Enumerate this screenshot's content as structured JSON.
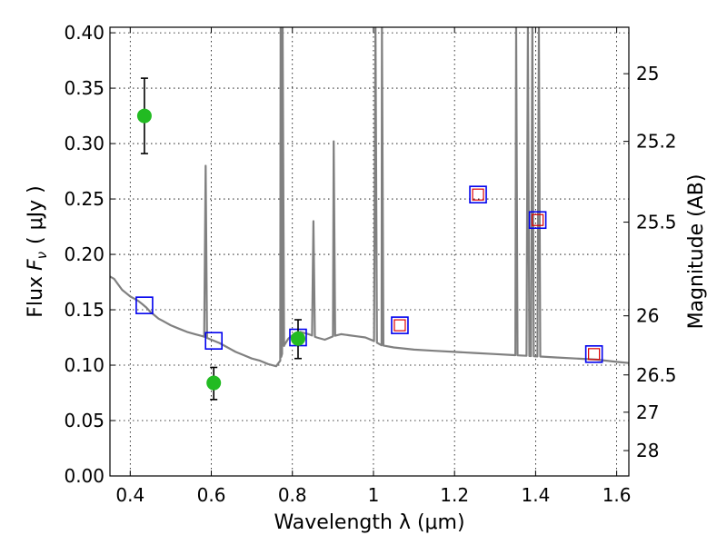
{
  "chart_data": {
    "type": "scatter",
    "xlabel": "Wavelength  λ (μm)",
    "ylabel": "Flux  F",
    "ylabel_sub": "ν",
    "ylabel_units": "( μJy )",
    "y2label": "Magnitude (AB)",
    "xlim": [
      0.35,
      1.63
    ],
    "ylim": [
      0,
      0.405
    ],
    "grid": true,
    "x_ticks": [
      0.4,
      0.6,
      0.8,
      1.0,
      1.2,
      1.4,
      1.6
    ],
    "x_tick_labels": [
      "0.4",
      "0.6",
      "0.8",
      "1",
      "1.2",
      "1.4",
      "1.6"
    ],
    "y_ticks": [
      0.0,
      0.05,
      0.1,
      0.15,
      0.2,
      0.25,
      0.3,
      0.35,
      0.4
    ],
    "y_tick_labels": [
      "0.00",
      "0.05",
      "0.10",
      "0.15",
      "0.20",
      "0.25",
      "0.30",
      "0.35",
      "0.40"
    ],
    "mag_ticks": [
      {
        "mag": 25,
        "label": "25"
      },
      {
        "mag": 25.2,
        "label": "25.2"
      },
      {
        "mag": 25.5,
        "label": "25.5"
      },
      {
        "mag": 26,
        "label": "26"
      },
      {
        "mag": 26.5,
        "label": "26.5"
      },
      {
        "mag": 27,
        "label": "27"
      },
      {
        "mag": 28,
        "label": "28"
      }
    ],
    "colors": {
      "spectrum": "#808080",
      "observed": "#22bb22",
      "errorbar": "#000000",
      "model_box": "#0000ee",
      "model_inner": "#dd0000"
    },
    "spectrum_continuum": [
      [
        0.35,
        0.18
      ],
      [
        0.36,
        0.178
      ],
      [
        0.37,
        0.173
      ],
      [
        0.38,
        0.168
      ],
      [
        0.39,
        0.165
      ],
      [
        0.4,
        0.162
      ],
      [
        0.41,
        0.16
      ],
      [
        0.42,
        0.158
      ],
      [
        0.43,
        0.155
      ],
      [
        0.44,
        0.152
      ],
      [
        0.45,
        0.148
      ],
      [
        0.46,
        0.145
      ],
      [
        0.47,
        0.142
      ],
      [
        0.48,
        0.14
      ],
      [
        0.49,
        0.138
      ],
      [
        0.5,
        0.136
      ],
      [
        0.52,
        0.133
      ],
      [
        0.54,
        0.13
      ],
      [
        0.56,
        0.128
      ],
      [
        0.58,
        0.126
      ],
      [
        0.6,
        0.123
      ],
      [
        0.62,
        0.12
      ],
      [
        0.64,
        0.116
      ],
      [
        0.66,
        0.112
      ],
      [
        0.68,
        0.109
      ],
      [
        0.7,
        0.106
      ],
      [
        0.72,
        0.104
      ],
      [
        0.74,
        0.101
      ],
      [
        0.76,
        0.099
      ],
      [
        0.77,
        0.104
      ],
      [
        0.78,
        0.118
      ],
      [
        0.79,
        0.124
      ],
      [
        0.8,
        0.127
      ],
      [
        0.82,
        0.13
      ],
      [
        0.84,
        0.128
      ],
      [
        0.86,
        0.125
      ],
      [
        0.88,
        0.123
      ],
      [
        0.9,
        0.126
      ],
      [
        0.92,
        0.128
      ],
      [
        0.94,
        0.127
      ],
      [
        0.96,
        0.126
      ],
      [
        0.98,
        0.125
      ],
      [
        1.0,
        0.122
      ],
      [
        1.02,
        0.118
      ],
      [
        1.05,
        0.116
      ],
      [
        1.1,
        0.114
      ],
      [
        1.15,
        0.113
      ],
      [
        1.2,
        0.112
      ],
      [
        1.25,
        0.111
      ],
      [
        1.3,
        0.11
      ],
      [
        1.35,
        0.109
      ],
      [
        1.4,
        0.108
      ],
      [
        1.45,
        0.107
      ],
      [
        1.5,
        0.106
      ],
      [
        1.55,
        0.105
      ],
      [
        1.6,
        0.103
      ],
      [
        1.63,
        0.102
      ]
    ],
    "emission_lines": [
      {
        "x": 0.586,
        "peak": 0.28
      },
      {
        "x": 0.771,
        "peak": 0.405
      },
      {
        "x": 0.776,
        "peak": 0.405
      },
      {
        "x": 0.852,
        "peak": 0.23
      },
      {
        "x": 0.902,
        "peak": 0.302
      },
      {
        "x": 1.005,
        "peak": 0.405
      },
      {
        "x": 1.021,
        "peak": 0.405
      },
      {
        "x": 1.352,
        "peak": 0.405
      },
      {
        "x": 1.381,
        "peak": 0.405
      },
      {
        "x": 1.392,
        "peak": 0.405
      },
      {
        "x": 1.408,
        "peak": 0.405
      }
    ],
    "observed_points": [
      {
        "x": 0.435,
        "y": 0.325,
        "yerr_low": 0.291,
        "yerr_high": 0.359
      },
      {
        "x": 0.606,
        "y": 0.084,
        "yerr_low": 0.069,
        "yerr_high": 0.098
      },
      {
        "x": 0.814,
        "y": 0.124,
        "yerr_low": 0.106,
        "yerr_high": 0.141
      }
    ],
    "model_points": [
      {
        "x": 0.435,
        "y": 0.154,
        "inner": false
      },
      {
        "x": 0.606,
        "y": 0.122,
        "inner": false
      },
      {
        "x": 0.814,
        "y": 0.125,
        "inner": false
      },
      {
        "x": 1.065,
        "y": 0.136,
        "inner": true
      },
      {
        "x": 1.258,
        "y": 0.254,
        "inner": true
      },
      {
        "x": 1.405,
        "y": 0.231,
        "inner": true
      },
      {
        "x": 1.544,
        "y": 0.11,
        "inner": true
      }
    ]
  }
}
